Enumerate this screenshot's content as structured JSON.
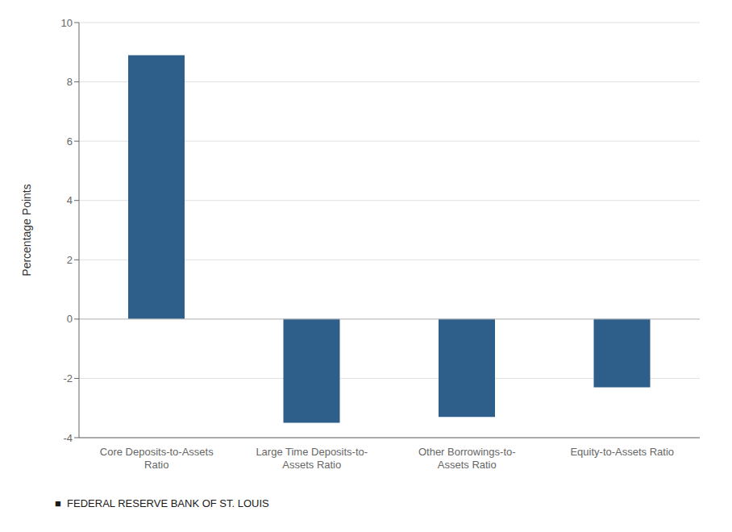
{
  "chart_data": {
    "type": "bar",
    "categories": [
      "Core Deposits-to-Assets\nRatio",
      "Large Time Deposits-to-\nAssets Ratio",
      "Other Borrowings-to-\nAssets Ratio",
      "Equity-to-Assets Ratio"
    ],
    "values": [
      8.9,
      -3.5,
      -3.3,
      -2.3
    ],
    "color": "#2e5f8a",
    "ylabel": "Percentage Points",
    "ylim": [
      -4,
      10
    ],
    "yticks": [
      -4,
      -2,
      0,
      2,
      4,
      6,
      8,
      10
    ],
    "grid": true,
    "annotations": [
      "■  FEDERAL RESERVE BANK OF ST. LOUIS"
    ]
  }
}
